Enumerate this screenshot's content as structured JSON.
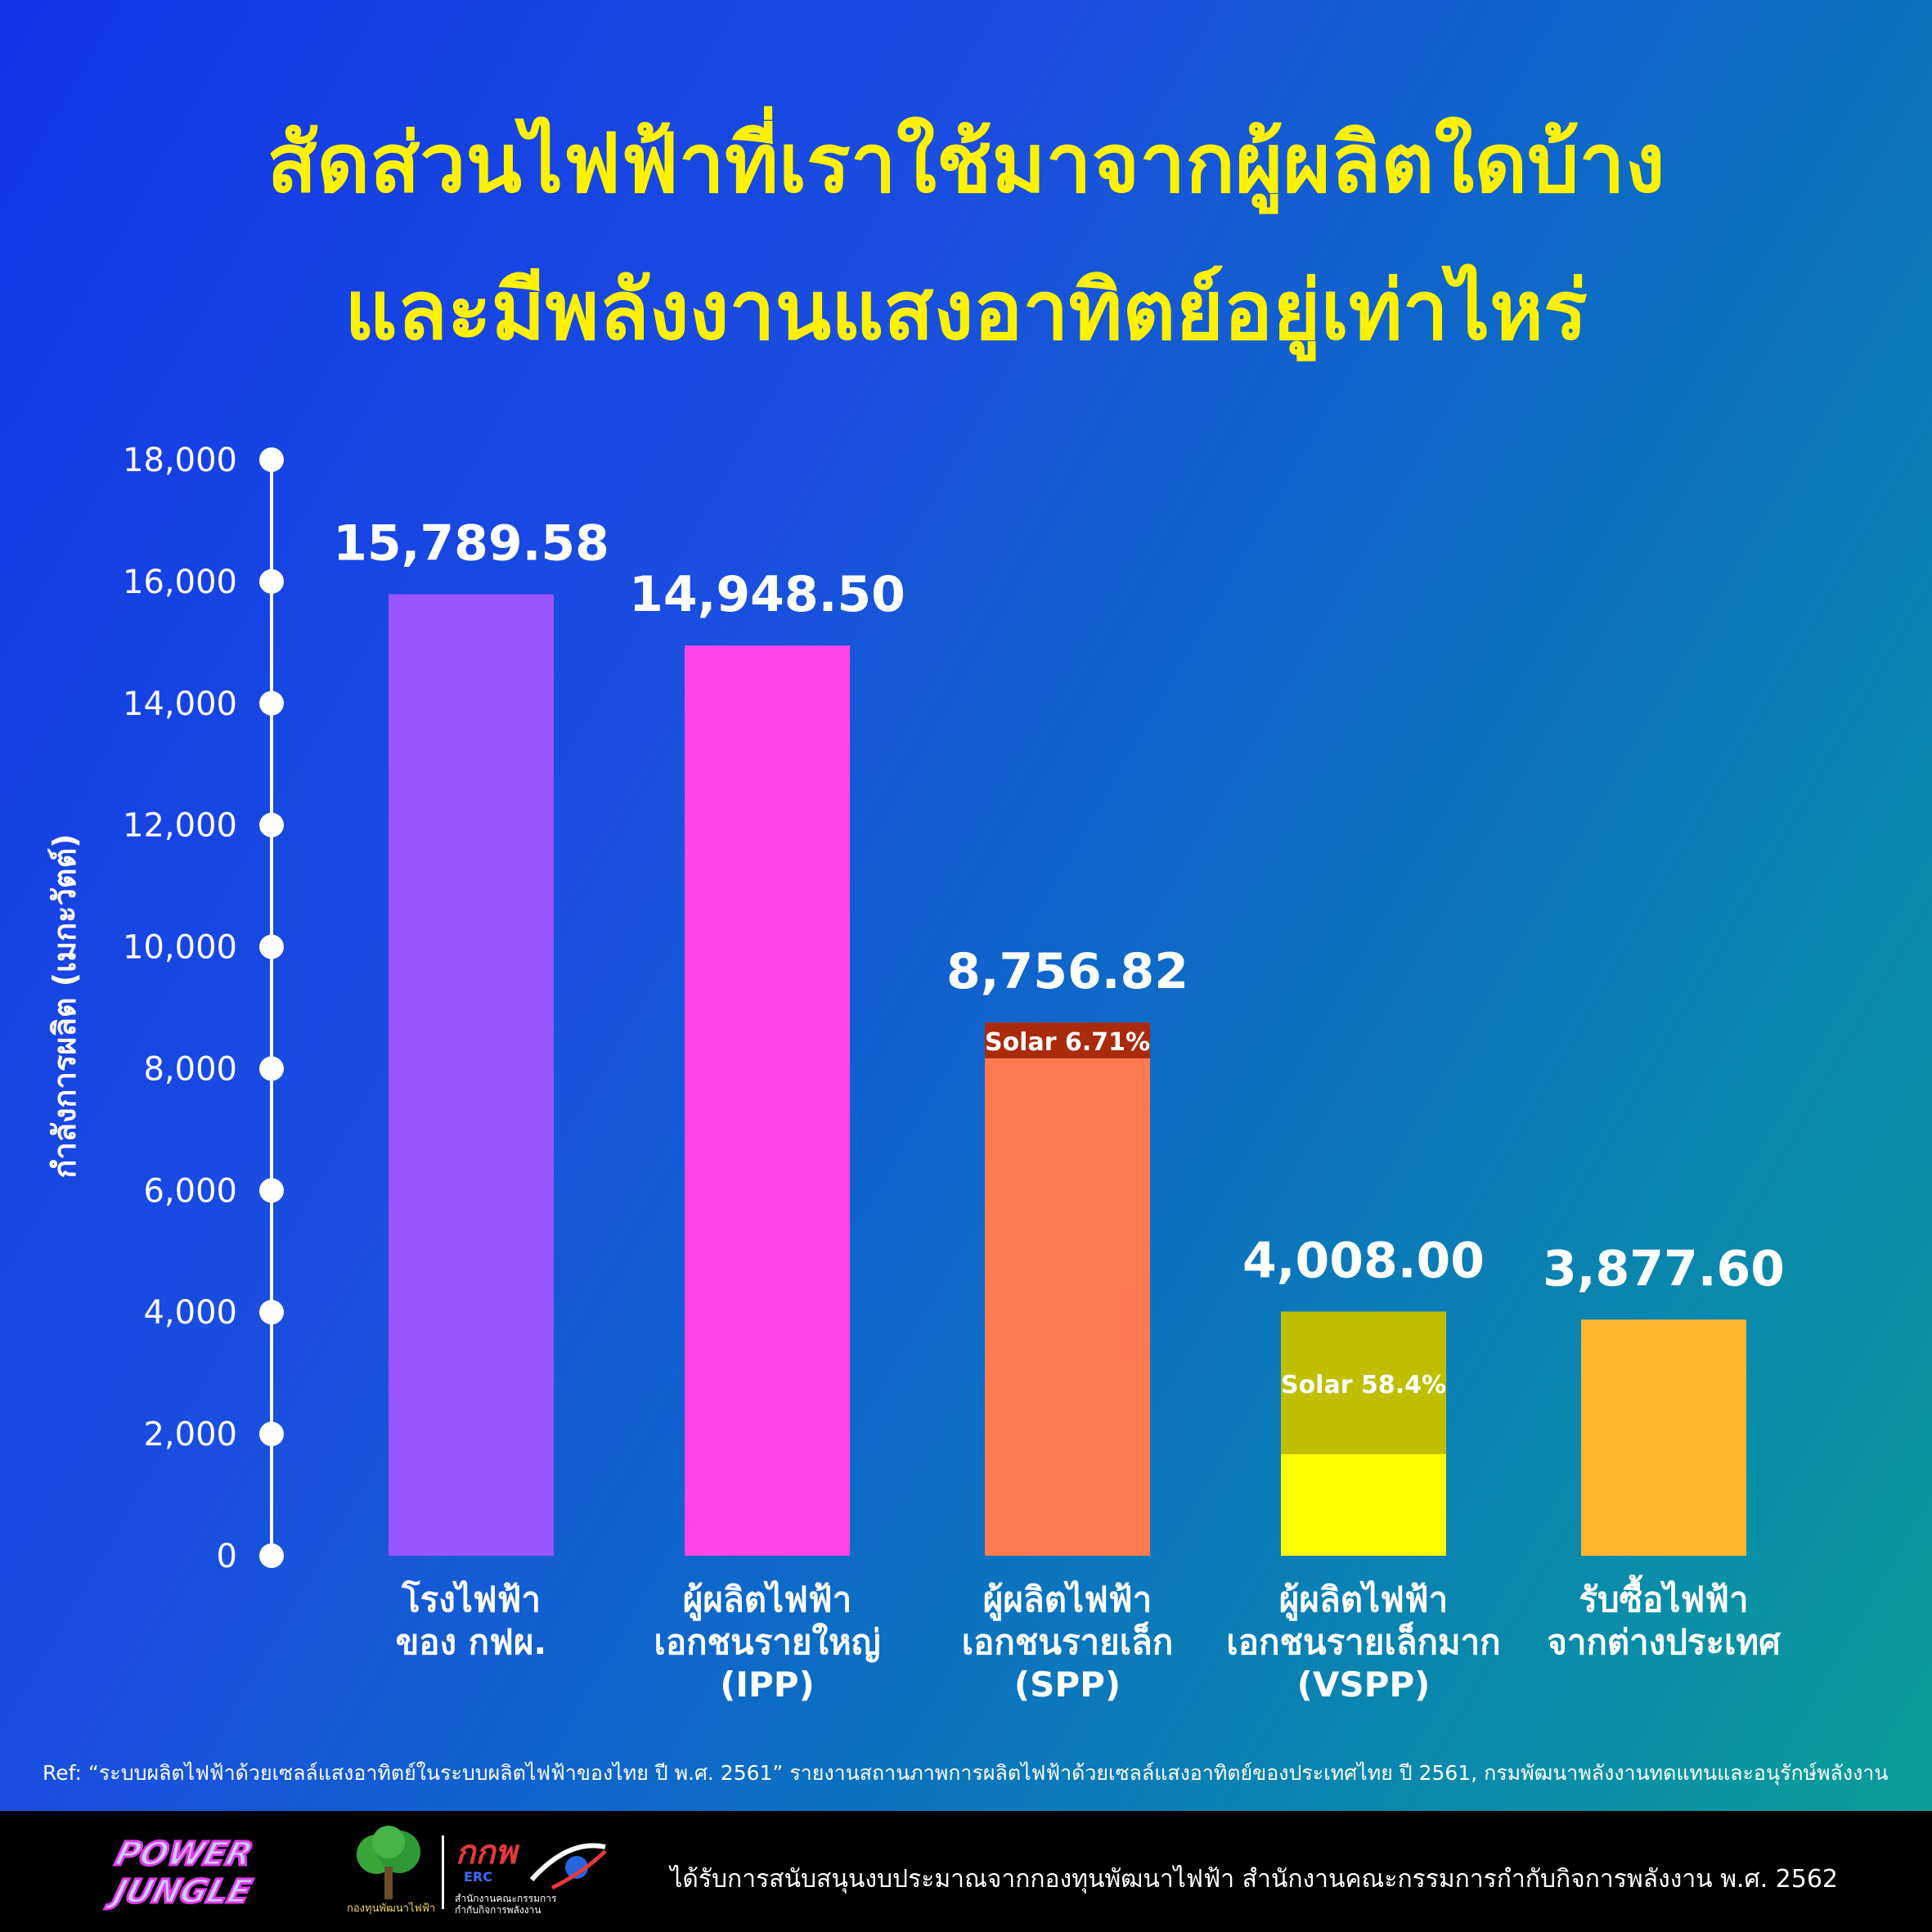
{
  "title": {
    "line1": "สัดส่วนไฟฟ้าที่เราใช้มาจากผู้ผลิตใดบ้าง",
    "line2": "และมีพลังงานแสงอาทิตย์อยู่เท่าไหร่"
  },
  "chart_data": {
    "type": "bar",
    "ylabel": "กำลังการผลิต (เมกะวัตต์)",
    "ylim": [
      0,
      18000
    ],
    "yticks": [
      "0",
      "2,000",
      "4,000",
      "6,000",
      "8,000",
      "10,000",
      "12,000",
      "14,000",
      "16,000",
      "18,000"
    ],
    "grid": false,
    "bars": [
      {
        "category": [
          "โรงไฟฟ้า",
          "ของ กฟผ."
        ],
        "value": 15789.58,
        "label": "15,789.58",
        "color": "#9955ff"
      },
      {
        "category": [
          "ผู้ผลิตไฟฟ้า",
          "เอกชนรายใหญ่",
          "(IPP)"
        ],
        "value": 14948.5,
        "label": "14,948.50",
        "color": "#ff44e8"
      },
      {
        "category": [
          "ผู้ผลิตไฟฟ้า",
          "เอกชนรายเล็ก",
          "(SPP)"
        ],
        "value": 8756.82,
        "label": "8,756.82",
        "color": "#ff7a50",
        "solar": {
          "fraction": 0.0671,
          "label": "Solar 6.71%",
          "color": "#aa2a0c"
        }
      },
      {
        "category": [
          "ผู้ผลิตไฟฟ้า",
          "เอกชนรายเล็กมาก",
          "(VSPP)"
        ],
        "value": 4008.0,
        "label": "4,008.00",
        "color": "#ffff00",
        "solar": {
          "fraction": 0.584,
          "label": "Solar 58.4%",
          "color": "#bfbf00"
        }
      },
      {
        "category": [
          "รับซื้อไฟฟ้า",
          "จากต่างประเทศ"
        ],
        "value": 3877.6,
        "label": "3,877.60",
        "color": "#ffb52e"
      }
    ]
  },
  "ref": "Ref: “ระบบผลิตไฟฟ้าด้วยเซลล์แสงอาทิตย์ในระบบผลิตไฟฟ้าของไทย ปี พ.ศ. 2561” รายงานสถานภาพการผลิตไฟฟ้าด้วยเซลล์แสงอาทิตย์ของประเทศไทย ปี 2561, กรมพัฒนาพลังงานทดแทนและอนุรักษ์พลังงาน",
  "footer": {
    "text": "ได้รับการสนับสนุนงบประมาณจากกองทุนพัฒนาไฟฟ้า สำนักงานคณะกรรมการกำกับกิจการพลังงาน พ.ศ. 2562",
    "logos": {
      "power_jungle": [
        "POWER",
        "JUNGLE"
      ],
      "tree_label": "กองทุนพัฒนาไฟฟ้า",
      "erc_mark": "กกพ",
      "erc_sub": "ERC",
      "erc_label": [
        "สำนักงานคณะกรรมการ",
        "กำกับกิจการพลังงาน"
      ]
    }
  }
}
